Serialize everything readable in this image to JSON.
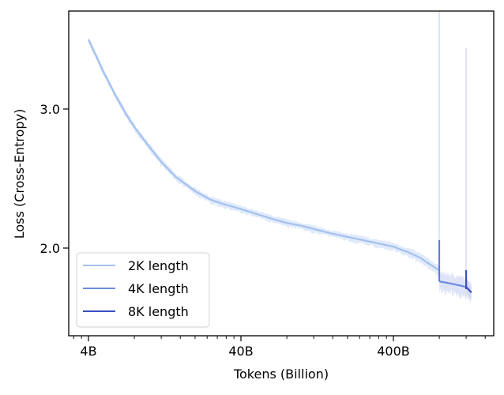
{
  "chart_data": {
    "type": "line",
    "title": "",
    "xlabel": "Tokens (Billion)",
    "ylabel": "Loss (Cross-Entropy)",
    "xscale": "log",
    "xlim": [
      3.3,
      1550
    ],
    "ylim": [
      1.38,
      3.72
    ],
    "x_ticks": [
      {
        "value": 4,
        "label": "4B"
      },
      {
        "value": 40,
        "label": "40B"
      },
      {
        "value": 400,
        "label": "400B"
      }
    ],
    "y_ticks": [
      {
        "value": 3.0,
        "label": "3.0"
      },
      {
        "value": 2.0,
        "label": "2.0"
      }
    ],
    "grid": false,
    "legend_position": "lower left",
    "legend": [
      {
        "label": "2K length",
        "color": "#a4c1ef"
      },
      {
        "label": "4K length",
        "color": "#6a8be0"
      },
      {
        "label": "8K length",
        "color": "#3a4fc0"
      }
    ],
    "series": [
      {
        "name": "2K length",
        "color": "#a4c1ef",
        "x": [
          4,
          5,
          6,
          7,
          8,
          10,
          12,
          15,
          20,
          25,
          30,
          40,
          60,
          80,
          100,
          150,
          200,
          300,
          400,
          500,
          600,
          700,
          800
        ],
        "y": [
          3.5,
          3.27,
          3.1,
          2.97,
          2.87,
          2.73,
          2.62,
          2.51,
          2.41,
          2.35,
          2.32,
          2.28,
          2.22,
          2.18,
          2.16,
          2.11,
          2.08,
          2.04,
          2.01,
          1.97,
          1.93,
          1.88,
          1.84
        ],
        "spike": {
          "x": 800,
          "y_max": 3.72
        }
      },
      {
        "name": "4K length",
        "color": "#6a8be0",
        "x": [
          800,
          850,
          900,
          1000,
          1100,
          1200
        ],
        "y": [
          1.76,
          1.755,
          1.75,
          1.74,
          1.73,
          1.72
        ],
        "spike": {
          "x": 1200,
          "y_max": 3.44
        }
      },
      {
        "name": "8K length",
        "color": "#3a4fc0",
        "x": [
          1200,
          1250,
          1300
        ],
        "y": [
          1.72,
          1.7,
          1.68
        ]
      }
    ]
  }
}
